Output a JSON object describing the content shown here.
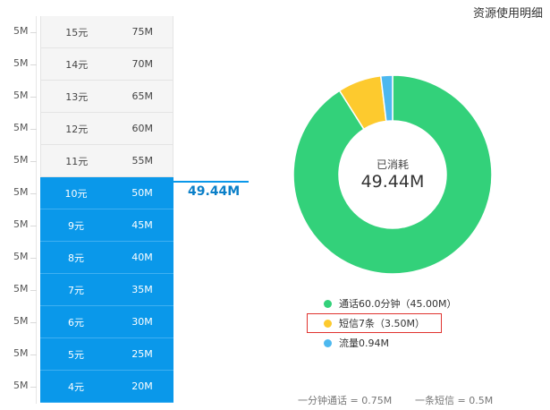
{
  "page_title": "资源使用明细",
  "side_labels": [
    "5M",
    "5M",
    "5M",
    "5M",
    "5M",
    "5M",
    "5M",
    "5M",
    "5M",
    "5M",
    "5M",
    "5M"
  ],
  "tiers": [
    {
      "price": "15元",
      "amount": "75M",
      "active": false
    },
    {
      "price": "14元",
      "amount": "70M",
      "active": false
    },
    {
      "price": "13元",
      "amount": "65M",
      "active": false
    },
    {
      "price": "12元",
      "amount": "60M",
      "active": false
    },
    {
      "price": "11元",
      "amount": "55M",
      "active": false
    },
    {
      "price": "10元",
      "amount": "50M",
      "active": true
    },
    {
      "price": "9元",
      "amount": "45M",
      "active": true
    },
    {
      "price": "8元",
      "amount": "40M",
      "active": true
    },
    {
      "price": "7元",
      "amount": "35M",
      "active": true
    },
    {
      "price": "6元",
      "amount": "30M",
      "active": true
    },
    {
      "price": "5元",
      "amount": "25M",
      "active": true
    },
    {
      "price": "4元",
      "amount": "20M",
      "active": true
    }
  ],
  "current_value": "49.44M",
  "donut": {
    "center_label": "已消耗",
    "center_value": "49.44M",
    "segments": [
      {
        "label": "通话60.0分钟（45.00M）",
        "value": 45.0,
        "color": "#33d17a"
      },
      {
        "label": "短信7条（3.50M）",
        "value": 3.5,
        "color": "#fdca2e"
      },
      {
        "label": "流量0.94M",
        "value": 0.94,
        "color": "#4db8ef"
      }
    ]
  },
  "footnotes": [
    "一分钟通话 = 0.75M",
    "一条短信 = 0.5M"
  ]
}
